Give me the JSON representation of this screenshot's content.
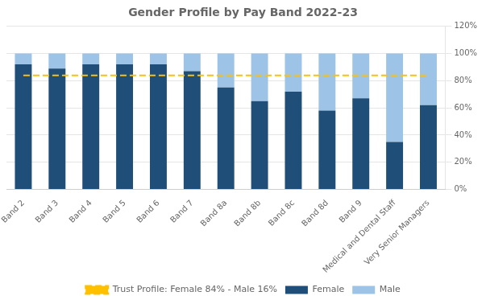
{
  "chart_data": {
    "type": "bar",
    "title": "Gender Profile by Pay Band 2022-23",
    "categories": [
      "Band 2",
      "Band 3",
      "Band 4",
      "Band 5",
      "Band 6",
      "Band 7",
      "Band 8a",
      "Band 8b",
      "Band 8c",
      "Band 8d",
      "Band 9",
      "Medical and Dental Staff",
      "Very Senior Managers"
    ],
    "stacked": true,
    "series": [
      {
        "name": "Female",
        "type": "bar",
        "color": "#1F4E79",
        "values": [
          92,
          89,
          92,
          92,
          92,
          87,
          75,
          65,
          72,
          58,
          67,
          35,
          62
        ]
      },
      {
        "name": "Male",
        "type": "bar",
        "color": "#9DC3E6",
        "values": [
          8,
          11,
          8,
          8,
          8,
          13,
          25,
          35,
          28,
          42,
          33,
          65,
          38
        ]
      },
      {
        "name": "Trust Profile: Female 84% - Male 16%",
        "type": "line",
        "color": "#FFC000",
        "line_style": "dashed",
        "values": [
          84,
          84,
          84,
          84,
          84,
          84,
          84,
          84,
          84,
          84,
          84,
          84,
          84
        ]
      }
    ],
    "ylim": [
      0,
      120
    ],
    "yticks": [
      {
        "value": 0,
        "label": "0%"
      },
      {
        "value": 20,
        "label": "20%"
      },
      {
        "value": 40,
        "label": "40%"
      },
      {
        "value": 60,
        "label": "60%"
      },
      {
        "value": 80,
        "label": "80%"
      },
      {
        "value": 100,
        "label": "100%"
      },
      {
        "value": 120,
        "label": "120%"
      }
    ],
    "grid": true,
    "legend": "bottom"
  }
}
